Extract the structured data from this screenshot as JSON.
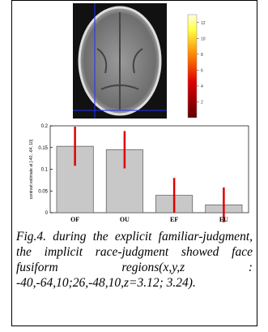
{
  "chart_data": {
    "type": "bar",
    "ylabel": "contrast estimate at [-40, -64, 10]",
    "categories": [
      "OF",
      "OU",
      "EF",
      "EU"
    ],
    "values": [
      0.153,
      0.145,
      0.04,
      0.018
    ],
    "errors": [
      0.045,
      0.043,
      0.04,
      0.04
    ],
    "color": "#c8c8c8",
    "error_color": "#e00000",
    "ylim": [
      0,
      0.2
    ],
    "yticks": [
      0,
      0.05,
      0.1,
      0.15,
      0.2
    ]
  },
  "colorbar": {
    "lim": [
      0,
      13
    ],
    "ticks": [
      2,
      4,
      6,
      8,
      10,
      12
    ]
  },
  "caption": "Fig.4. during the explicit familiar-judgment, the implicit race-judgment showed face fusiform regions(x,y,z : -40,-64,10;26,-48,10,z=3.12; 3.24)."
}
